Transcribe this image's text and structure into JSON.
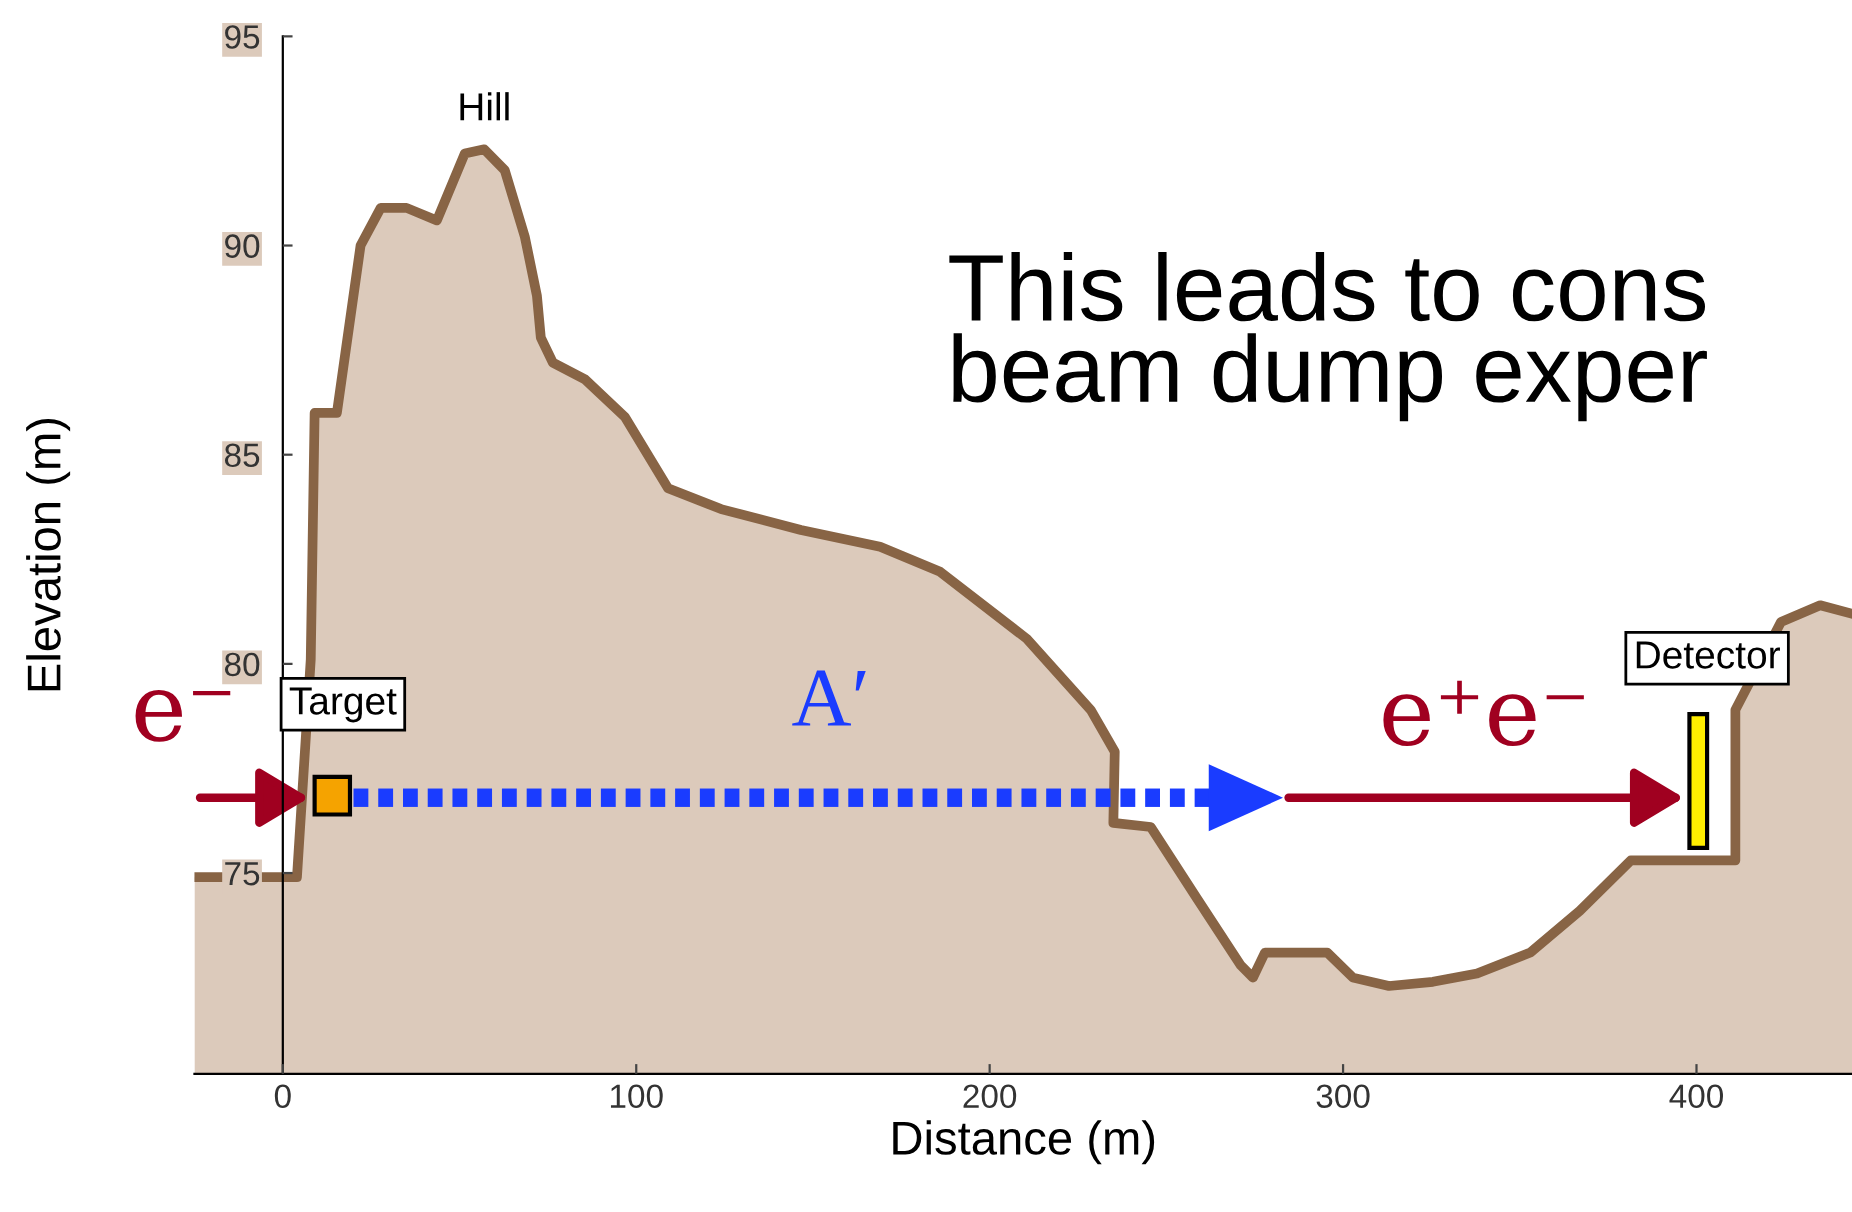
{
  "chart_data": {
    "type": "area",
    "xlabel": "Distance (m)",
    "ylabel": "Elevation (m)",
    "x": [
      -25,
      4,
      7.9,
      9,
      15.3,
      22,
      27.7,
      35,
      43.6,
      51.5,
      57,
      62.8,
      68.5,
      71.9,
      73,
      76.4,
      85.5,
      96.8,
      109,
      124,
      146.6,
      169,
      186,
      210.5,
      228.6,
      235.4,
      235,
      245.6,
      258.6,
      271,
      274.5,
      277.9,
      295.5,
      302.8,
      313,
      325.4,
      337.9,
      353,
      367,
      381.4,
      411,
      411,
      423.9,
      435,
      444
    ],
    "series": [
      {
        "color": "#dccabb",
        "values": [
          74.9,
          74.9,
          80.1,
          86,
          86,
          90,
          90.9,
          90.9,
          90.6,
          92.2,
          92.3,
          91.8,
          90.2,
          88.8,
          87.8,
          87.2,
          86.8,
          85.9,
          84.2,
          83.7,
          83.2,
          82.8,
          82.2,
          80.6,
          78.9,
          77.9,
          76.2,
          76.1,
          74.4,
          72.8,
          72.5,
          73.1,
          73.1,
          72.5,
          72.3,
          72.4,
          72.6,
          73.1,
          74.1,
          75.3,
          75.3,
          78.9,
          81.0,
          81.4,
          81.2
        ]
      }
    ],
    "xlim": [
      -25,
      444
    ],
    "ylim": [
      70.2,
      95
    ],
    "xticks": [
      0,
      100,
      200,
      300,
      400
    ],
    "yticks": [
      75,
      80,
      85,
      90,
      95
    ],
    "grid": false,
    "legend": false,
    "annotations": [
      "Hill",
      "Target",
      "Detector",
      "A′",
      "e⁻",
      "e⁺e⁻",
      "This leads to cons\nbeam dump exper"
    ]
  }
}
